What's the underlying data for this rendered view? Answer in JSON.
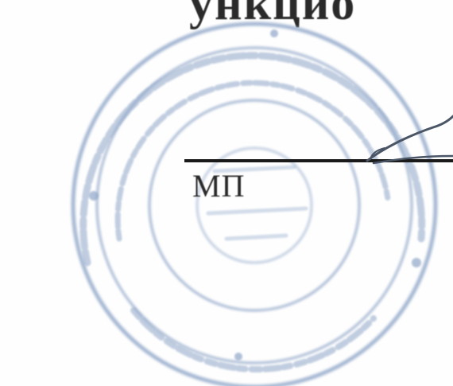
{
  "document": {
    "mp_label": "МП",
    "top_text_fragment": "ункцио"
  },
  "stamp": {
    "ink_color": "#8fa6c8"
  }
}
